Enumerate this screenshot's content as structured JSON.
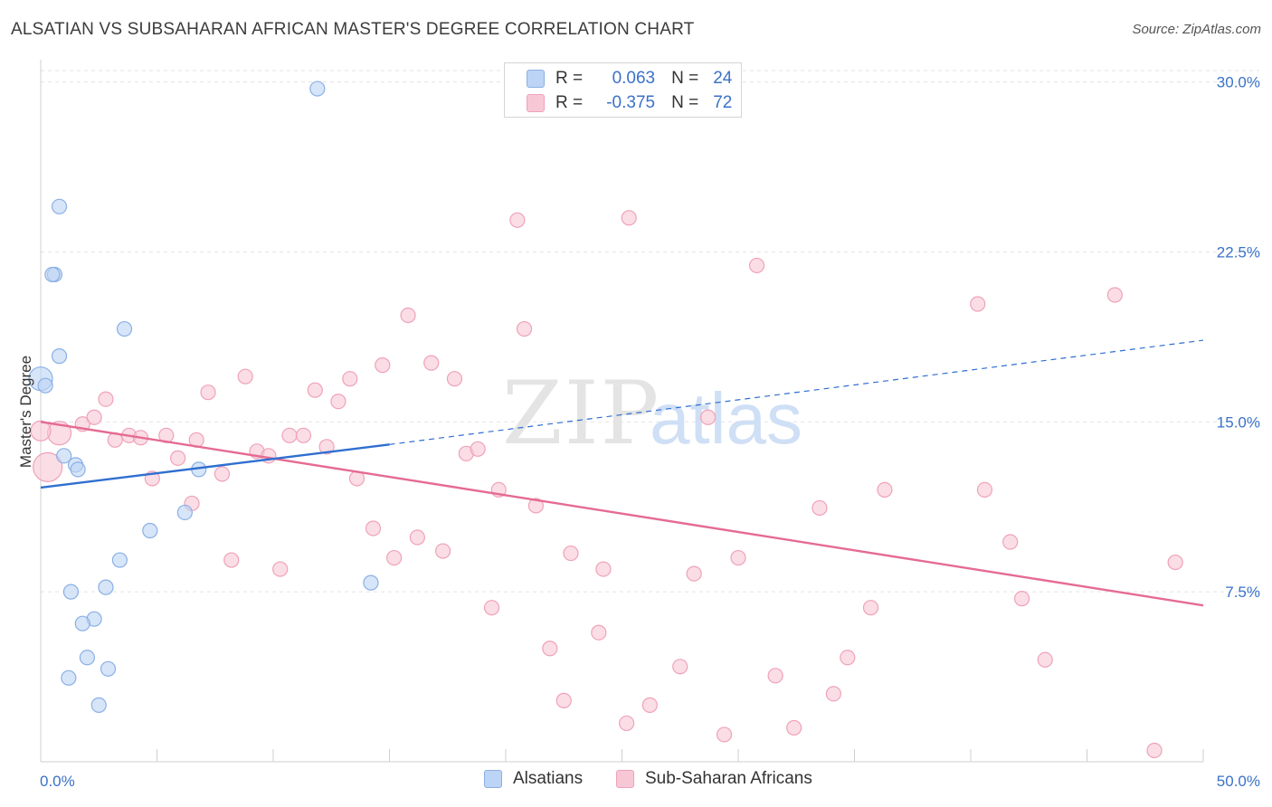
{
  "title": "ALSATIAN VS SUBSAHARAN AFRICAN MASTER'S DEGREE CORRELATION CHART",
  "source": "Source: ZipAtlas.com",
  "watermark": {
    "zip": "ZIP",
    "atlas": "atlas"
  },
  "legend_top": {
    "rows": [
      {
        "r_label": "R =",
        "r_value": "0.063",
        "n_label": "N =",
        "n_value": "24",
        "color": "#a9c8f3"
      },
      {
        "r_label": "R =",
        "r_value": "-0.375",
        "n_label": "N =",
        "n_value": "72",
        "color": "#f6b6c8"
      }
    ]
  },
  "legend_bottom": [
    {
      "label": "Alsatians",
      "color": "#a9c8f3"
    },
    {
      "label": "Sub-Saharan Africans",
      "color": "#f6b6c8"
    }
  ],
  "colors": {
    "blue_line": "#2f6fd0",
    "pink_line": "#e56b93",
    "blue_fill": "#bcd4f5",
    "blue_stroke": "#8ab0e4",
    "pink_fill": "#f8c7d6",
    "pink_stroke": "#efa2b9",
    "tick_label": "#3a72c8"
  },
  "chart_data": {
    "type": "scatter",
    "xlabel": "",
    "ylabel": "Master's Degree",
    "xlim": [
      0,
      50
    ],
    "ylim": [
      0,
      30.5
    ],
    "x_tick_labels": [
      "0.0%",
      "50.0%"
    ],
    "y_ticks": [
      7.5,
      15.0,
      22.5,
      30.0
    ],
    "y_tick_labels": [
      "7.5%",
      "15.0%",
      "22.5%",
      "30.0%"
    ],
    "grid": "horizontal dashed",
    "series": [
      {
        "name": "Alsatians",
        "points": [
          [
            11.9,
            29.7
          ],
          [
            0.8,
            24.5
          ],
          [
            0.6,
            21.5
          ],
          [
            0.5,
            21.5
          ],
          [
            3.6,
            19.1
          ],
          [
            0.8,
            17.9
          ],
          [
            0.0,
            16.9
          ],
          [
            0.2,
            16.6
          ],
          [
            1.0,
            13.5
          ],
          [
            1.5,
            13.1
          ],
          [
            1.6,
            12.9
          ],
          [
            6.8,
            12.9
          ],
          [
            4.7,
            10.2
          ],
          [
            6.2,
            11.0
          ],
          [
            3.4,
            8.9
          ],
          [
            1.3,
            7.5
          ],
          [
            2.8,
            7.7
          ],
          [
            14.2,
            7.9
          ],
          [
            2.3,
            6.3
          ],
          [
            1.8,
            6.1
          ],
          [
            2.0,
            4.6
          ],
          [
            1.2,
            3.7
          ],
          [
            2.9,
            4.1
          ],
          [
            2.5,
            2.5
          ]
        ],
        "trend": {
          "x": [
            0,
            15
          ],
          "y": [
            12.1,
            14.0
          ]
        },
        "trend_extension": {
          "x": [
            15,
            50
          ],
          "y": [
            14.0,
            18.6
          ]
        }
      },
      {
        "name": "Sub-Saharan Africans",
        "points": [
          [
            0.3,
            13.0
          ],
          [
            0.8,
            14.5
          ],
          [
            1.8,
            14.9
          ],
          [
            2.3,
            15.2
          ],
          [
            2.8,
            16.0
          ],
          [
            3.8,
            14.4
          ],
          [
            3.2,
            14.2
          ],
          [
            4.3,
            14.3
          ],
          [
            4.8,
            12.5
          ],
          [
            5.4,
            14.4
          ],
          [
            5.9,
            13.4
          ],
          [
            6.5,
            11.4
          ],
          [
            6.7,
            14.2
          ],
          [
            7.2,
            16.3
          ],
          [
            7.8,
            12.7
          ],
          [
            8.2,
            8.9
          ],
          [
            8.8,
            17.0
          ],
          [
            9.3,
            13.7
          ],
          [
            9.8,
            13.5
          ],
          [
            10.3,
            8.5
          ],
          [
            10.7,
            14.4
          ],
          [
            11.3,
            14.4
          ],
          [
            11.8,
            16.4
          ],
          [
            12.3,
            13.9
          ],
          [
            12.8,
            15.9
          ],
          [
            13.3,
            16.9
          ],
          [
            13.6,
            12.5
          ],
          [
            14.3,
            10.3
          ],
          [
            14.7,
            17.5
          ],
          [
            15.2,
            9.0
          ],
          [
            15.8,
            19.7
          ],
          [
            16.2,
            9.9
          ],
          [
            16.8,
            17.6
          ],
          [
            17.3,
            9.3
          ],
          [
            17.8,
            16.9
          ],
          [
            18.3,
            13.6
          ],
          [
            18.8,
            13.8
          ],
          [
            19.4,
            6.8
          ],
          [
            19.7,
            12.0
          ],
          [
            20.5,
            23.9
          ],
          [
            20.8,
            19.1
          ],
          [
            21.3,
            11.3
          ],
          [
            21.9,
            5.0
          ],
          [
            22.5,
            2.7
          ],
          [
            22.8,
            9.2
          ],
          [
            24.0,
            5.7
          ],
          [
            24.2,
            8.5
          ],
          [
            25.2,
            1.7
          ],
          [
            25.3,
            24.0
          ],
          [
            26.2,
            2.5
          ],
          [
            27.5,
            4.2
          ],
          [
            28.1,
            8.3
          ],
          [
            28.7,
            15.2
          ],
          [
            29.4,
            1.2
          ],
          [
            30.0,
            9.0
          ],
          [
            30.8,
            21.9
          ],
          [
            31.6,
            3.8
          ],
          [
            32.4,
            1.5
          ],
          [
            33.5,
            11.2
          ],
          [
            34.1,
            3.0
          ],
          [
            34.7,
            4.6
          ],
          [
            35.7,
            6.8
          ],
          [
            36.3,
            12.0
          ],
          [
            40.3,
            20.2
          ],
          [
            40.6,
            12.0
          ],
          [
            41.7,
            9.7
          ],
          [
            42.2,
            7.2
          ],
          [
            43.2,
            4.5
          ],
          [
            46.2,
            20.6
          ],
          [
            47.9,
            0.5
          ],
          [
            48.8,
            8.8
          ],
          [
            0.0,
            14.6
          ]
        ],
        "trend": {
          "x": [
            0,
            50
          ],
          "y": [
            15.0,
            6.9
          ]
        }
      }
    ]
  }
}
